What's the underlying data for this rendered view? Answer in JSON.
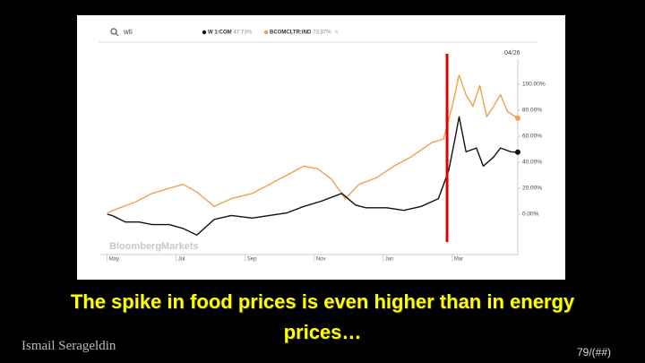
{
  "slide": {
    "caption": "The spike in food prices is even higher than in energy prices…",
    "author": "Ismail Serageldin",
    "page": "79/(##)"
  },
  "chart_data": {
    "type": "line",
    "search": "wti",
    "date_label": "04/26",
    "watermark": "BloombergMarkets",
    "marker_x": 9.85,
    "marker_color": "#e00000",
    "xlim": [
      -0.2,
      11.9
    ],
    "ylim": [
      -30,
      125
    ],
    "xticks": [
      {
        "value": 0,
        "label": "May"
      },
      {
        "value": 2,
        "label": "Jul"
      },
      {
        "value": 4,
        "label": "Sep"
      },
      {
        "value": 6,
        "label": "Nov"
      },
      {
        "value": 8,
        "label": "Jan"
      },
      {
        "value": 10,
        "label": "Mar"
      }
    ],
    "yticks": [
      {
        "value": 100,
        "label": "100.00%"
      },
      {
        "value": 80,
        "label": "80.00%"
      },
      {
        "value": 60,
        "label": "60.00%"
      },
      {
        "value": 40,
        "label": "40.00%"
      },
      {
        "value": 20,
        "label": "20.00%"
      },
      {
        "value": 0,
        "label": "0.00%"
      }
    ],
    "series": [
      {
        "name": "W 1:COM",
        "legend_value": "47.73%",
        "color": "#111111",
        "x": [
          0,
          0.14,
          0.53,
          0.92,
          1.3,
          1.8,
          2.2,
          2.6,
          3.1,
          3.6,
          4.2,
          4.7,
          5.2,
          5.7,
          6.2,
          6.8,
          7.2,
          7.5,
          8.1,
          8.6,
          9.1,
          9.6,
          9.9,
          10.1,
          10.2,
          10.4,
          10.7,
          10.9,
          11.2,
          11.4,
          11.7,
          11.9
        ],
        "values": [
          0,
          -1,
          -6,
          -6,
          -8,
          -8,
          -11,
          -16,
          -4,
          -1,
          -3,
          -1,
          1,
          6,
          10,
          16,
          7,
          5,
          5,
          3,
          6,
          12,
          34,
          61,
          75,
          48,
          51,
          37,
          44,
          51,
          48,
          47.73
        ]
      },
      {
        "name": "BCOMCLTR:IND",
        "legend_value": "73.87%",
        "color": "#f0a04b",
        "x": [
          0,
          0.27,
          0.79,
          1.3,
          1.8,
          2.2,
          2.6,
          3.1,
          3.6,
          4.2,
          4.7,
          5.2,
          5.7,
          6.1,
          6.5,
          6.9,
          7.3,
          7.8,
          8.3,
          8.8,
          9.4,
          9.75,
          10.0,
          10.2,
          10.4,
          10.6,
          10.8,
          11.0,
          11.2,
          11.4,
          11.6,
          11.9
        ],
        "values": [
          1,
          4,
          9,
          16,
          20,
          23,
          17,
          6,
          12,
          16,
          23,
          30,
          37,
          35,
          27,
          12,
          23,
          28,
          37,
          44,
          55,
          58,
          83,
          107,
          92,
          83,
          99,
          75,
          83,
          92,
          79,
          73.87
        ]
      }
    ]
  }
}
